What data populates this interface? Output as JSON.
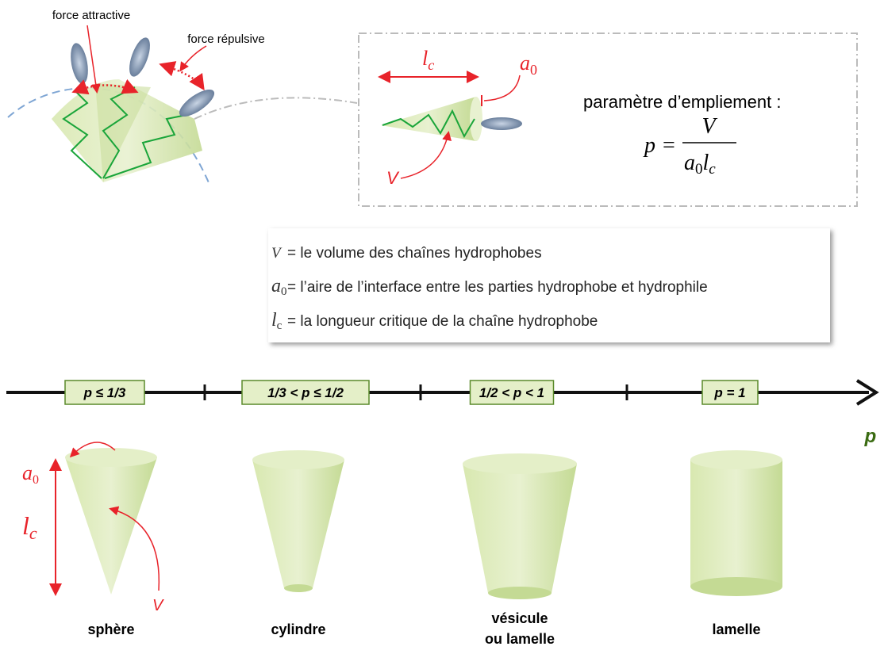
{
  "top_diagram": {
    "attractive_label": "force attractive",
    "repulsive_label": "force répulsive"
  },
  "inset": {
    "length_label": {
      "base": "l",
      "sub": "c"
    },
    "area_label": {
      "base": "a",
      "sub": "0"
    },
    "volume_label": "V",
    "title": "paramètre d’empliement :",
    "formula": {
      "lhs": "p",
      "equals": "=",
      "numerator": "V",
      "denominator": [
        {
          "base": "a",
          "sub": "0"
        },
        {
          "base": "l",
          "sub": "c"
        }
      ]
    }
  },
  "legend": [
    {
      "symbol": {
        "base": "V"
      },
      "text": "= le volume des chaînes hydrophobes"
    },
    {
      "symbol": {
        "base": "a",
        "sub": "0"
      },
      "text": "= l’aire de l’interface entre les parties hydrophobe et hydrophile"
    },
    {
      "symbol": {
        "base": "l",
        "sub": "c"
      },
      "text": "= la longueur critique de la chaîne hydrophobe"
    }
  ],
  "axis": {
    "label": "p",
    "ranges": [
      "p ≤ 1/3",
      "1/3 < p ≤ 1/2",
      "1/2 < p < 1",
      "p = 1"
    ]
  },
  "shape_labels": {
    "area": {
      "base": "a",
      "sub": "0"
    },
    "length": {
      "base": "l",
      "sub": "c"
    },
    "volume": "V"
  },
  "shapes": [
    {
      "name": [
        "sphère"
      ]
    },
    {
      "name": [
        "cylindre"
      ]
    },
    {
      "name": [
        "vésicule",
        "ou lamelle"
      ]
    },
    {
      "name": [
        "lamelle"
      ]
    }
  ]
}
